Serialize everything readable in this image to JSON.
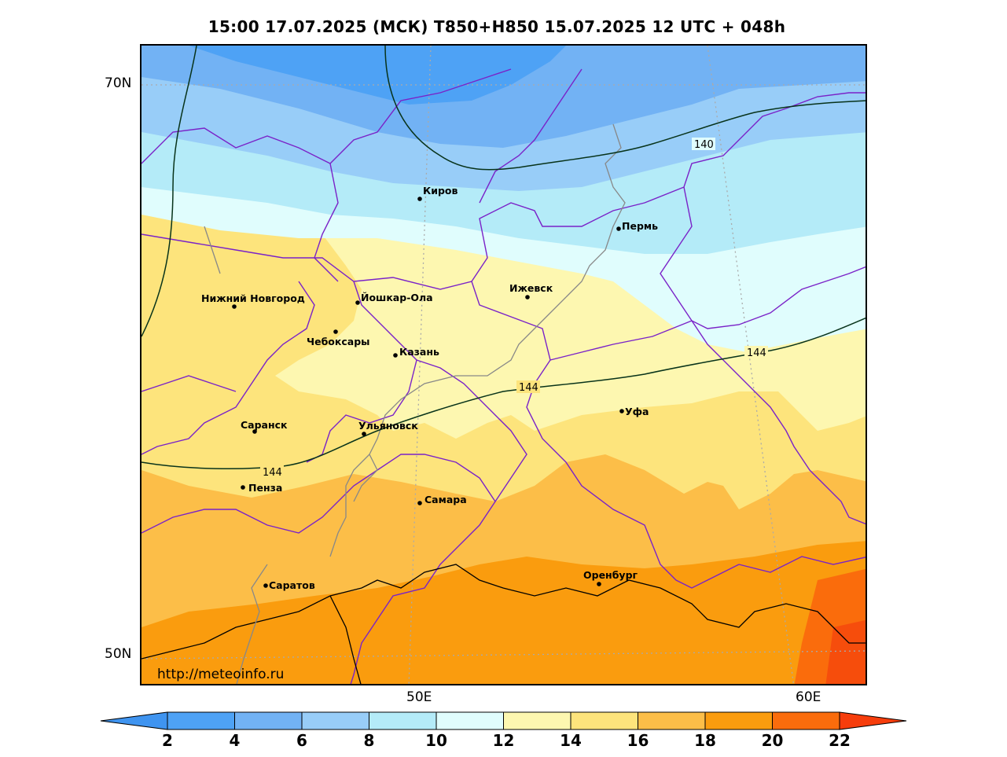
{
  "title": "15:00 17.07.2025 (МСК) T850+H850 15.07.2025 12 UTC + 048h",
  "watermark": "http://meteoinfo.ru",
  "lat_labels": [
    "70N",
    "50N"
  ],
  "lon_labels": [
    "50E",
    "60E"
  ],
  "cities": [
    {
      "name": "Киров",
      "id": "kirov"
    },
    {
      "name": "Пермь",
      "id": "perm"
    },
    {
      "name": "Ижевск",
      "id": "izhevsk"
    },
    {
      "name": "Нижний Новгород",
      "id": "nizhny-novgorod"
    },
    {
      "name": "Йошкар-Ола",
      "id": "yoshkar-ola"
    },
    {
      "name": "Чебоксары",
      "id": "cheboksary"
    },
    {
      "name": "Казань",
      "id": "kazan"
    },
    {
      "name": "Уфа",
      "id": "ufa"
    },
    {
      "name": "Саранск",
      "id": "saransk"
    },
    {
      "name": "Ульяновск",
      "id": "ulyanovsk"
    },
    {
      "name": "Пенза",
      "id": "penza"
    },
    {
      "name": "Самара",
      "id": "samara"
    },
    {
      "name": "Оренбург",
      "id": "orenburg"
    },
    {
      "name": "Саратов",
      "id": "saratov"
    }
  ],
  "contour_labels": [
    "140",
    "144",
    "144",
    "144"
  ],
  "colorbar": {
    "ticks": [
      "2",
      "4",
      "6",
      "8",
      "10",
      "12",
      "14",
      "16",
      "18",
      "20",
      "22"
    ],
    "colors": [
      "#3f94f0",
      "#4ea2f5",
      "#72b2f4",
      "#98cdf8",
      "#b4ebf8",
      "#e0fdfd",
      "#fdf7b0",
      "#fde47c",
      "#fcbe48",
      "#fa9c0e",
      "#fa6c0c",
      "#f63d0c"
    ]
  },
  "chart_data": {
    "type": "heatmap",
    "variable": "T850+H850",
    "scale_ticks": [
      2,
      4,
      6,
      8,
      10,
      12,
      14,
      16,
      18,
      20,
      22
    ],
    "contours": [
      {
        "label": "140"
      },
      {
        "label": "144"
      }
    ],
    "lat_ticks": [
      "70N",
      "50N"
    ],
    "lon_ticks": [
      "50E",
      "60E"
    ]
  }
}
